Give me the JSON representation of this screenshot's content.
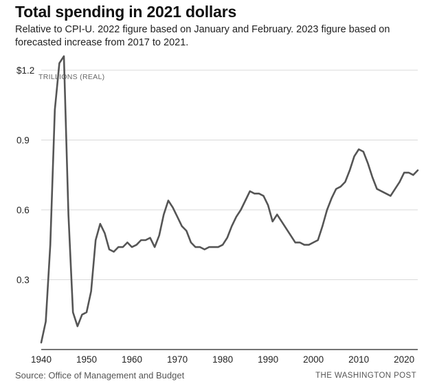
{
  "header": {
    "title": "Total spending in 2021 dollars",
    "subtitle": "Relative to CPI-U. 2022 figure based on January and February. 2023 figure based on forecasted increase from 2017 to 2021."
  },
  "footer": {
    "source": "Source: Office of Management and Budget",
    "credit": "THE WASHINGTON POST"
  },
  "colors": {
    "line": "#555555",
    "grid": "#d9d9d9",
    "axis": "#222222"
  },
  "chart_data": {
    "type": "line",
    "title": "Total spending in 2021 dollars",
    "subtitle": "Relative to CPI-U. 2022 figure based on January and February. 2023 figure based on forecasted increase from 2017 to 2021.",
    "unit_label": "TRILLIONS (REAL)",
    "xlabel": "",
    "ylabel": "",
    "xlim": [
      1940,
      2023
    ],
    "ylim": [
      0,
      1.2
    ],
    "grid": true,
    "x_ticks": [
      1940,
      1950,
      1960,
      1970,
      1980,
      1990,
      2000,
      2010,
      2020
    ],
    "y_ticks": [
      {
        "value": 0.3,
        "label": "0.3"
      },
      {
        "value": 0.6,
        "label": "0.6"
      },
      {
        "value": 0.9,
        "label": "0.9"
      },
      {
        "value": 1.2,
        "label": "$1.2"
      }
    ],
    "series": [
      {
        "x": [
          1940,
          1941,
          1942,
          1943,
          1944,
          1945,
          1946,
          1947,
          1948,
          1949,
          1950,
          1951,
          1952,
          1953,
          1954,
          1955,
          1956,
          1957,
          1958,
          1959,
          1960,
          1961,
          1962,
          1963,
          1964,
          1965,
          1966,
          1967,
          1968,
          1969,
          1970,
          1971,
          1972,
          1973,
          1974,
          1975,
          1976,
          1977,
          1978,
          1979,
          1980,
          1981,
          1982,
          1983,
          1984,
          1985,
          1986,
          1987,
          1988,
          1989,
          1990,
          1991,
          1992,
          1993,
          1994,
          1995,
          1996,
          1997,
          1998,
          1999,
          2000,
          2001,
          2002,
          2003,
          2004,
          2005,
          2006,
          2007,
          2008,
          2009,
          2010,
          2011,
          2012,
          2013,
          2014,
          2015,
          2016,
          2017,
          2018,
          2019,
          2020,
          2021,
          2022,
          2023
        ],
        "y": [
          0.03,
          0.12,
          0.45,
          1.03,
          1.23,
          1.26,
          0.58,
          0.16,
          0.1,
          0.15,
          0.16,
          0.25,
          0.47,
          0.54,
          0.5,
          0.43,
          0.42,
          0.44,
          0.44,
          0.46,
          0.44,
          0.45,
          0.47,
          0.47,
          0.48,
          0.44,
          0.49,
          0.58,
          0.64,
          0.61,
          0.57,
          0.53,
          0.51,
          0.46,
          0.44,
          0.44,
          0.43,
          0.44,
          0.44,
          0.44,
          0.45,
          0.48,
          0.53,
          0.57,
          0.6,
          0.64,
          0.68,
          0.67,
          0.67,
          0.66,
          0.62,
          0.55,
          0.58,
          0.55,
          0.52,
          0.49,
          0.46,
          0.46,
          0.45,
          0.45,
          0.46,
          0.47,
          0.53,
          0.6,
          0.65,
          0.69,
          0.7,
          0.72,
          0.77,
          0.83,
          0.86,
          0.85,
          0.8,
          0.74,
          0.69,
          0.68,
          0.67,
          0.66,
          0.69,
          0.72,
          0.76,
          0.76,
          0.75,
          0.77
        ]
      }
    ]
  }
}
